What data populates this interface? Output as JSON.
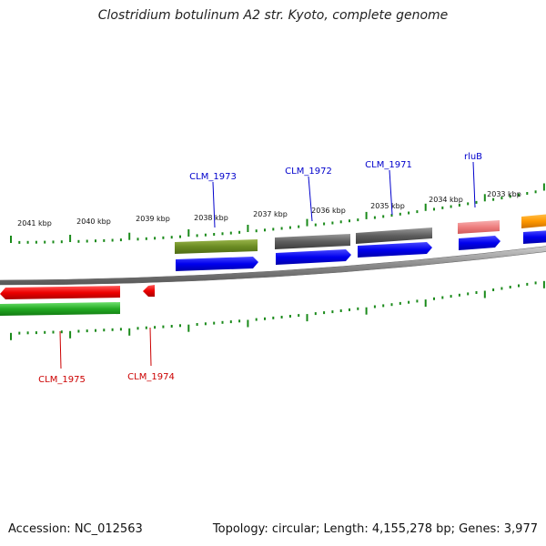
{
  "title": "Clostridium botulinum A2 str. Kyoto, complete genome",
  "footer": {
    "accession": "Accession: NC_012563",
    "summary": "Topology: circular; Length: 4,155,278 bp; Genes: 3,977"
  },
  "tick_labels": [
    "2041 kbp",
    "2040 kbp",
    "2039 kbp",
    "2038 kbp",
    "2037 kbp",
    "2036 kbp",
    "2035 kbp",
    "2034 kbp",
    "2033 kbp"
  ],
  "gene_labels": {
    "top": [
      "CLM_1973",
      "CLM_1972",
      "CLM_1971",
      "rluB"
    ],
    "bottom": [
      "CLM_1975",
      "CLM_1974"
    ]
  },
  "colors": {
    "forward_label": "#0000cc",
    "reverse_label": "#cc0000",
    "tick": "#1a8a1a",
    "backbone": "#888888"
  }
}
